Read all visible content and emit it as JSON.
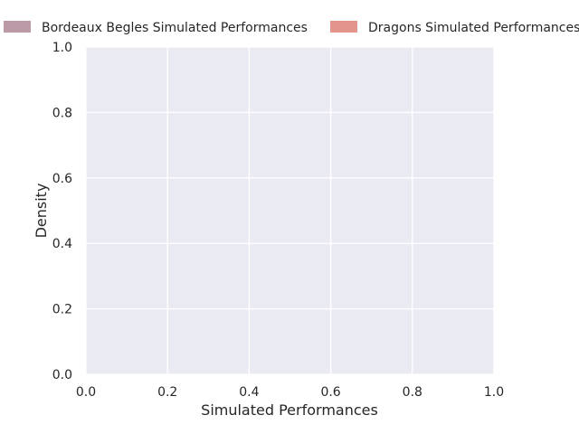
{
  "chart_data": {
    "type": "area",
    "xlabel": "Simulated Performances",
    "ylabel": "Density",
    "xlim": [
      0.0,
      1.0
    ],
    "ylim": [
      0.0,
      1.0
    ],
    "xticks": [
      "0.0",
      "0.2",
      "0.4",
      "0.6",
      "0.8",
      "1.0"
    ],
    "yticks": [
      "0.0",
      "0.2",
      "0.4",
      "0.6",
      "0.8",
      "1.0"
    ],
    "grid": true,
    "legend_position": "top",
    "series": [
      {
        "name": "Bordeaux Begles Simulated Performances",
        "color": "#b48e9c",
        "values": []
      },
      {
        "name": "Dragons Simulated Performances",
        "color": "#e08a80",
        "values": []
      }
    ]
  },
  "colors": {
    "plot_background": "#eaeaf2",
    "grid": "#ffffff",
    "text": "#262626"
  }
}
